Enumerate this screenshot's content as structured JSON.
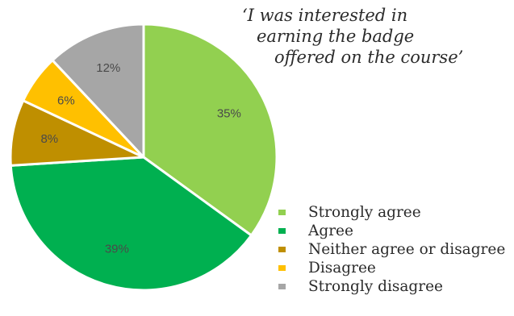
{
  "chart_data": {
    "type": "pie",
    "title_lines": [
      "‘I was interested in",
      "earning the badge",
      "offered on the course’"
    ],
    "categories": [
      "Strongly agree",
      "Agree",
      "Neither agree or disagree",
      "Disagree",
      "Strongly disagree"
    ],
    "values": [
      35,
      39,
      8,
      6,
      12
    ],
    "labels": [
      "35%",
      "39%",
      "8%",
      "6%",
      "12%"
    ],
    "colors": [
      "#92d050",
      "#00b050",
      "#bf8f00",
      "#ffc000",
      "#a6a6a6"
    ],
    "start_angle": "12 o'clock",
    "direction": "clockwise",
    "legend_position": "bottom-right"
  }
}
